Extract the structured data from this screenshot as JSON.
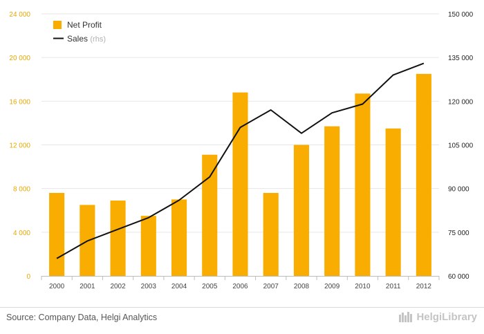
{
  "source": "Source: Company Data, Helgi Analytics",
  "brand": "HelgiLibrary",
  "colors": {
    "bar": "#f9ad00",
    "line": "#111111",
    "grid": "#e6e6e6",
    "left_axis_text": "#e8a800"
  },
  "legend": {
    "bar_label": "Net Profit",
    "line_label": "Sales",
    "line_note": "(rhs)",
    "placement": "top-left"
  },
  "chart_data": {
    "type": "bar",
    "title": "",
    "xlabel": "",
    "ylabel": "",
    "categories": [
      "2000",
      "2001",
      "2002",
      "2003",
      "2004",
      "2005",
      "2006",
      "2007",
      "2008",
      "2009",
      "2010",
      "2011",
      "2012"
    ],
    "series": [
      {
        "name": "Net Profit",
        "type": "bar",
        "axis": "left",
        "values": [
          7600,
          6500,
          6900,
          5500,
          7000,
          11100,
          16800,
          7600,
          12000,
          13700,
          16700,
          13500,
          18500
        ]
      },
      {
        "name": "Sales",
        "type": "line",
        "axis": "right",
        "values": [
          66000,
          72000,
          76000,
          80000,
          86000,
          94000,
          111000,
          117000,
          109000,
          116000,
          119000,
          129000,
          133000
        ]
      }
    ],
    "ylim": [
      0,
      24000
    ],
    "yticks": [
      "0",
      "4 000",
      "8 000",
      "12 000",
      "16 000",
      "20 000",
      "24 000"
    ],
    "ylim_right": [
      60000,
      150000
    ],
    "yticks_right": [
      "60 000",
      "75 000",
      "90 000",
      "105 000",
      "120 000",
      "135 000",
      "150 000"
    ],
    "grid": true
  }
}
